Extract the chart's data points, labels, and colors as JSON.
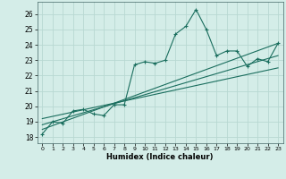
{
  "title": "",
  "xlabel": "Humidex (Indice chaleur)",
  "ylabel": "",
  "background_color": "#d4ede8",
  "grid_color": "#b8d8d2",
  "line_color": "#1a6e5e",
  "xlim": [
    -0.5,
    23.5
  ],
  "ylim": [
    17.6,
    26.8
  ],
  "yticks": [
    18,
    19,
    20,
    21,
    22,
    23,
    24,
    25,
    26
  ],
  "xticks": [
    0,
    1,
    2,
    3,
    4,
    5,
    6,
    7,
    8,
    9,
    10,
    11,
    12,
    13,
    14,
    15,
    16,
    17,
    18,
    19,
    20,
    21,
    22,
    23
  ],
  "series": [
    {
      "x": [
        0,
        1,
        2,
        3,
        4,
        5,
        6,
        7,
        8,
        9,
        10,
        11,
        12,
        13,
        14,
        15,
        16,
        17,
        18,
        19,
        20,
        21,
        22,
        23
      ],
      "y": [
        18.2,
        19.0,
        18.9,
        19.7,
        19.8,
        19.5,
        19.4,
        20.1,
        20.1,
        22.7,
        22.9,
        22.8,
        23.0,
        24.7,
        25.2,
        26.3,
        25.0,
        23.3,
        23.6,
        23.6,
        22.6,
        23.1,
        22.9,
        24.1
      ]
    },
    {
      "x": [
        0,
        23
      ],
      "y": [
        18.5,
        24.1
      ]
    },
    {
      "x": [
        0,
        23
      ],
      "y": [
        18.8,
        23.3
      ]
    },
    {
      "x": [
        0,
        23
      ],
      "y": [
        19.2,
        22.5
      ]
    }
  ]
}
